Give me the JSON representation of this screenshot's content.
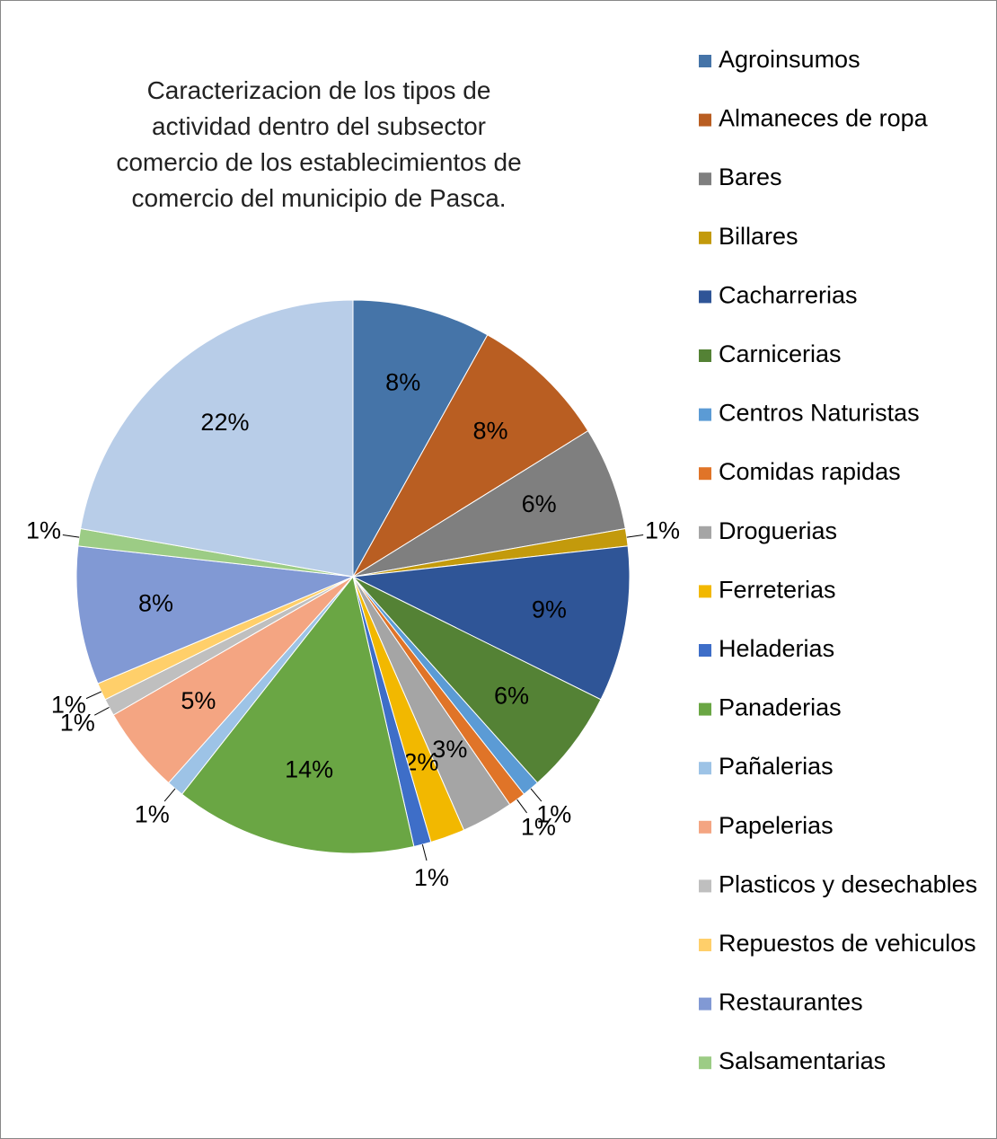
{
  "chart_data": {
    "type": "pie",
    "title": "Caracterizacion de los tipos de actividad dentro del subsector comercio de los establecimientos de comercio del municipio de Pasca.",
    "categories": [
      "Agroinsumos",
      "Almaneces de ropa",
      "Bares",
      "Billares",
      "Cacharrerias",
      "Carnicerias",
      "Centros Naturistas",
      "Comidas rapidas",
      "Droguerias",
      "Ferreterias",
      "Heladerias",
      "Panaderias",
      "Pañalerias",
      "Papelerias",
      "Plasticos y desechables",
      "Repuestos de vehiculos",
      "Restaurantes",
      "Salsamentarias",
      null
    ],
    "values": [
      8,
      8,
      6,
      1,
      9,
      6,
      1,
      1,
      3,
      2,
      1,
      14,
      1,
      5,
      1,
      1,
      8,
      1,
      22
    ],
    "value_labels": [
      "8%",
      "8%",
      "6%",
      "1%",
      "9%",
      "6%",
      "1%",
      "1%",
      "3%",
      "2%",
      "1%",
      "14%",
      "1%",
      "5%",
      "1%",
      "1%",
      "8%",
      "1%",
      "22%"
    ],
    "colors": [
      "#4574a8",
      "#b95e22",
      "#7f7f7f",
      "#c39a0c",
      "#2f5597",
      "#548235",
      "#5b9bd5",
      "#e07428",
      "#a5a5a5",
      "#f2b800",
      "#3e6ec8",
      "#6aa644",
      "#9dc3e6",
      "#f4a582",
      "#bfbfbf",
      "#ffcf6a",
      "#8199d4",
      "#9ccc85",
      "#b8cde8"
    ],
    "legend": "right"
  }
}
